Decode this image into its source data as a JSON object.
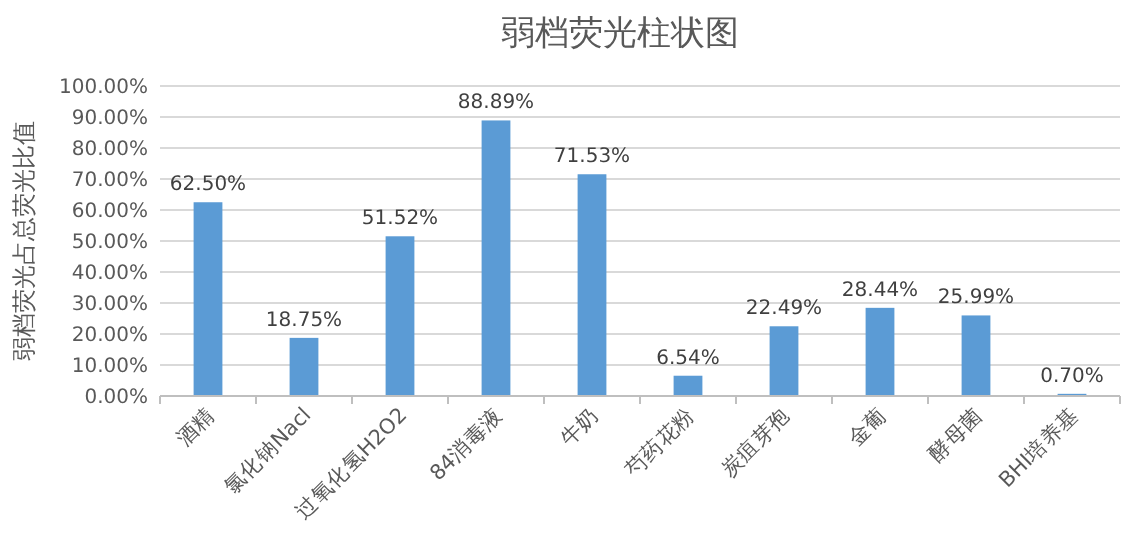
{
  "chart_data": {
    "type": "bar",
    "title": "弱档荧光柱状图",
    "ylabel": "弱档荧光占总荧光比值",
    "categories": [
      "酒精",
      "氯化钠Nacl",
      "过氧化氢H2O2",
      "84消毒液",
      "牛奶",
      "芍药花粉",
      "炭疽芽孢",
      "金葡",
      "酵母菌",
      "BHI培养基"
    ],
    "values": [
      62.5,
      18.75,
      51.52,
      88.89,
      71.53,
      6.54,
      22.49,
      28.44,
      25.99,
      0.7
    ],
    "value_labels": [
      "62.50%",
      "18.75%",
      "51.52%",
      "88.89%",
      "71.53%",
      "6.54%",
      "22.49%",
      "28.44%",
      "25.99%",
      "0.70%"
    ],
    "color": "#5b9bd5",
    "ylim": [
      0,
      100
    ],
    "yticks": [
      {
        "value": 0,
        "label": "0.00%"
      },
      {
        "value": 10,
        "label": "10.00%"
      },
      {
        "value": 20,
        "label": "20.00%"
      },
      {
        "value": 30,
        "label": "30.00%"
      },
      {
        "value": 40,
        "label": "40.00%"
      },
      {
        "value": 50,
        "label": "50.00%"
      },
      {
        "value": 60,
        "label": "60.00%"
      },
      {
        "value": 70,
        "label": "70.00%"
      },
      {
        "value": 80,
        "label": "80.00%"
      },
      {
        "value": 90,
        "label": "90.00%"
      },
      {
        "value": 100,
        "label": "100.00%"
      }
    ],
    "grid": "y"
  }
}
